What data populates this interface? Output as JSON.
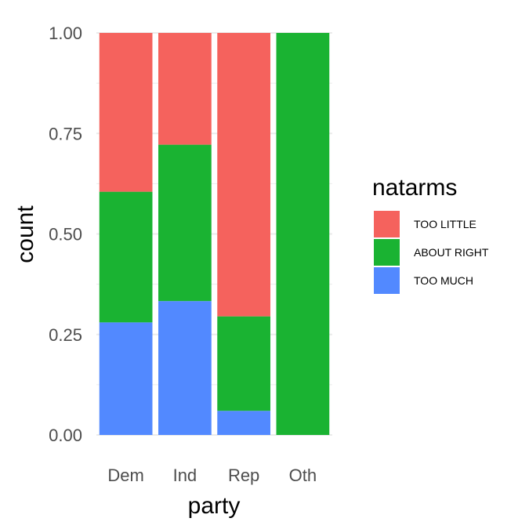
{
  "chart_data": {
    "type": "bar",
    "stacked": true,
    "title": "",
    "xlabel": "party",
    "ylabel": "count",
    "ylim": [
      0,
      1
    ],
    "yticks": [
      "0.00",
      "0.25",
      "0.50",
      "0.75",
      "1.00"
    ],
    "categories": [
      "Dem",
      "Ind",
      "Rep",
      "Oth"
    ],
    "legend_title": "natarms",
    "legend_position": "right",
    "grid": true,
    "series": [
      {
        "name": "TOO MUCH",
        "color": "#5289FF",
        "values": [
          0.28,
          0.333,
          0.06,
          0.0
        ]
      },
      {
        "name": "ABOUT RIGHT",
        "color": "#1AB332",
        "values": [
          0.325,
          0.389,
          0.235,
          1.0
        ]
      },
      {
        "name": "TOO LITTLE",
        "color": "#F5625D",
        "values": [
          0.395,
          0.278,
          0.705,
          0.0
        ]
      }
    ],
    "legend_order": [
      "TOO LITTLE",
      "ABOUT RIGHT",
      "TOO MUCH"
    ]
  }
}
